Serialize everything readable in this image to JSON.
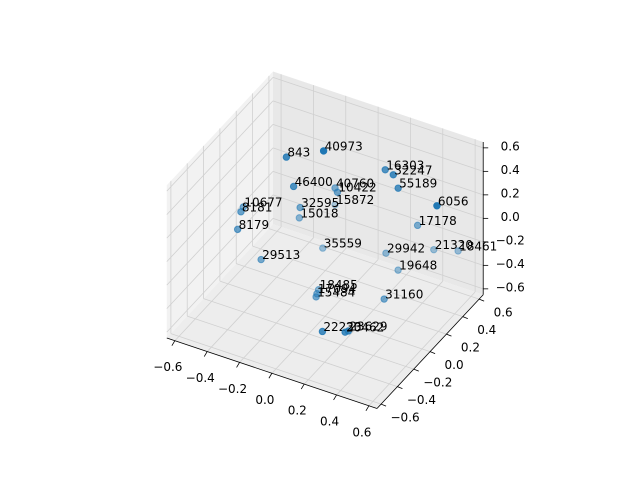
{
  "chart_data": {
    "type": "scatter3d",
    "color": "#1f77b4",
    "depthshade": true,
    "grid": true,
    "labels": [
      "843",
      "40973",
      "16303",
      "32247",
      "46400",
      "40760",
      "10422",
      "55189",
      "32595",
      "15872",
      "10677",
      "8181",
      "15018",
      "6056",
      "8179",
      "17178",
      "35559",
      "29942",
      "21320",
      "18461",
      "29513",
      "19648",
      "18485",
      "17094",
      "15484",
      "31160",
      "22233",
      "20462",
      "23629"
    ],
    "x": [
      -0.34,
      -0.14,
      0.13,
      0.19,
      -0.28,
      -0.13,
      -0.1,
      0.22,
      -0.26,
      -0.16,
      -0.53,
      -0.52,
      -0.27,
      0.48,
      -0.51,
      0.32,
      -0.13,
      0.19,
      0.4,
      0.52,
      -0.37,
      0.27,
      -0.07,
      -0.06,
      -0.05,
      0.28,
      0.08,
      0.19,
      0.2
    ],
    "y": [
      0.2,
      0.26,
      0.48,
      0.46,
      0.17,
      0.38,
      0.35,
      0.46,
      0.21,
      0.44,
      0.05,
      0.0,
      0.22,
      0.42,
      -0.06,
      0.5,
      0.23,
      0.37,
      0.54,
      0.6,
      -0.05,
      0.36,
      0.06,
      0.02,
      -0.01,
      0.17,
      -0.19,
      -0.13,
      -0.11
    ],
    "z": [
      0.4,
      0.5,
      0.3,
      0.3,
      0.2,
      0.1,
      0.1,
      0.2,
      0.0,
      -0.1,
      0.0,
      0.0,
      -0.1,
      0.2,
      -0.1,
      -0.1,
      -0.3,
      -0.3,
      -0.3,
      -0.3,
      -0.3,
      -0.4,
      -0.5,
      -0.5,
      -0.5,
      -0.5,
      -0.6,
      -0.6,
      -0.6
    ],
    "xlim": [
      -0.65,
      0.65
    ],
    "ylim": [
      -0.65,
      0.65
    ],
    "zlim": [
      -0.65,
      0.65
    ],
    "xticks": [
      {
        "value": -0.6,
        "label": "−0.6"
      },
      {
        "value": -0.4,
        "label": "−0.4"
      },
      {
        "value": -0.2,
        "label": "−0.2"
      },
      {
        "value": 0,
        "label": "0.0"
      },
      0.2,
      0.4,
      0.6
    ],
    "yticks": [
      {
        "value": -0.6,
        "label": "−0.6"
      },
      {
        "value": -0.4,
        "label": "−0.4"
      },
      {
        "value": -0.2,
        "label": "−0.2"
      },
      {
        "value": 0,
        "label": "0.0"
      },
      0.2,
      0.4,
      0.6
    ],
    "zticks": [
      {
        "value": -0.6,
        "label": "−0.6"
      },
      {
        "value": -0.4,
        "label": "−0.4"
      },
      {
        "value": -0.2,
        "label": "−0.2"
      },
      {
        "value": 0,
        "label": "0.0"
      },
      0.2,
      0.4,
      0.6
    ]
  }
}
